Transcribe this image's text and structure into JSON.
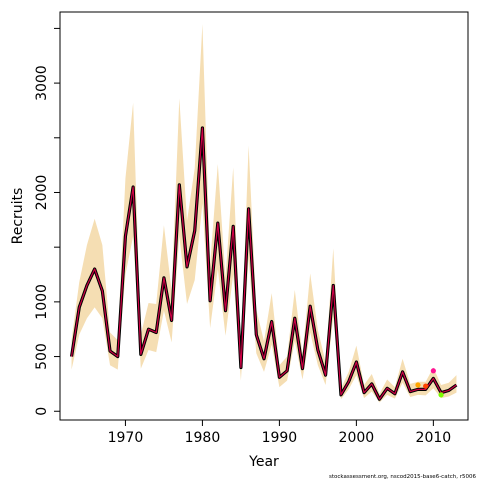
{
  "chart_data": {
    "type": "line",
    "title": "",
    "xlabel": "Year",
    "ylabel": "Recruits",
    "footnote": "stockassessment.org, nscod2015-base6-catch, r5006",
    "xlim": [
      1961.5,
      2014.5
    ],
    "ylim": [
      -80,
      3650
    ],
    "x_ticks": [
      1970,
      1980,
      1990,
      2000,
      2010
    ],
    "y_ticks_labeled": [
      0,
      500,
      1000,
      2000,
      3000
    ],
    "y_ticks_minor": [
      1500,
      2500,
      3500
    ],
    "grid": false,
    "legend": "none",
    "colors": {
      "band": "#f5deb3",
      "line_main": "#000000",
      "line_retro": "#cc0044",
      "retro_2010": "#ff1493",
      "retro_2009": "#ff4500",
      "retro_2011": "#7cfc00",
      "retro_2008": "#ffa500"
    },
    "years": [
      1963,
      1964,
      1965,
      1966,
      1967,
      1968,
      1969,
      1970,
      1971,
      1972,
      1973,
      1974,
      1975,
      1976,
      1977,
      1978,
      1979,
      1980,
      1981,
      1982,
      1983,
      1984,
      1985,
      1986,
      1987,
      1988,
      1989,
      1990,
      1991,
      1992,
      1993,
      1994,
      1995,
      1996,
      1997,
      1998,
      1999,
      2000,
      2001,
      2002,
      2003,
      2004,
      2005,
      2006,
      2007,
      2008,
      2009,
      2010,
      2011,
      2012,
      2013
    ],
    "estimate": [
      500,
      950,
      1150,
      1300,
      1100,
      550,
      500,
      1600,
      2050,
      520,
      750,
      720,
      1220,
      830,
      2070,
      1320,
      1650,
      2590,
      1010,
      1720,
      920,
      1690,
      400,
      1850,
      700,
      480,
      820,
      310,
      370,
      850,
      390,
      960,
      560,
      330,
      1150,
      150,
      270,
      450,
      170,
      250,
      110,
      210,
      160,
      360,
      180,
      200,
      200,
      300,
      170,
      190,
      240
    ],
    "lower": [
      380,
      700,
      850,
      950,
      850,
      420,
      380,
      1250,
      1600,
      390,
      560,
      540,
      920,
      630,
      1600,
      980,
      1200,
      1900,
      760,
      1300,
      690,
      1250,
      280,
      1400,
      530,
      360,
      610,
      220,
      280,
      640,
      290,
      720,
      420,
      240,
      860,
      110,
      200,
      330,
      120,
      180,
      80,
      150,
      115,
      260,
      130,
      150,
      145,
      210,
      120,
      135,
      170
    ],
    "upper": [
      650,
      1180,
      1520,
      1760,
      1520,
      720,
      650,
      2130,
      2820,
      700,
      990,
      980,
      1700,
      1100,
      2860,
      1740,
      2220,
      3540,
      1340,
      2260,
      1220,
      2230,
      530,
      2430,
      930,
      640,
      1080,
      420,
      500,
      1110,
      520,
      1260,
      740,
      450,
      1490,
      210,
      360,
      600,
      240,
      340,
      160,
      290,
      220,
      480,
      250,
      270,
      270,
      400,
      240,
      260,
      330
    ],
    "retro_points": [
      {
        "year": 2008,
        "value": 240
      },
      {
        "year": 2009,
        "value": 230
      },
      {
        "year": 2010,
        "value": 370
      },
      {
        "year": 2011,
        "value": 150
      }
    ]
  }
}
